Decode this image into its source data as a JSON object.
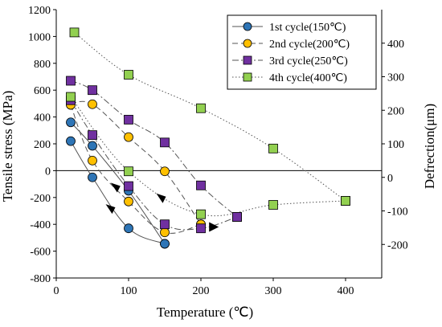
{
  "chart_data": {
    "type": "line",
    "xlabel": "Temperature (℃)",
    "ylabel": "Tensile stress (MPa)",
    "y2label": "Defrection(μm)",
    "xlim": [
      0,
      450
    ],
    "ylim": [
      -800,
      1200
    ],
    "y2lim": [
      -300,
      500
    ],
    "x_ticks": [
      "0",
      "100",
      "200",
      "300",
      "400"
    ],
    "x_tick_values": [
      0,
      100,
      200,
      300,
      400
    ],
    "y_ticks": [
      "-800",
      "-600",
      "-400",
      "-200",
      "0",
      "200",
      "400",
      "600",
      "800",
      "1000",
      "1200"
    ],
    "y_tick_values": [
      -800,
      -600,
      -400,
      -200,
      0,
      200,
      400,
      600,
      800,
      1000,
      1200
    ],
    "y2_ticks": [
      "-200",
      "-100",
      "0",
      "100",
      "200",
      "300",
      "400"
    ],
    "y2_tick_values": [
      -200,
      -100,
      0,
      100,
      200,
      300,
      400
    ],
    "legend_position": "top-right",
    "series": [
      {
        "name": "1st cycle(150℃)",
        "marker": "circle",
        "color": "#2e75b6",
        "line": "solid",
        "upper": [
          [
            20,
            360
          ],
          [
            50,
            185
          ],
          [
            100,
            -150
          ],
          [
            150,
            -545
          ]
        ],
        "lower": [
          [
            20,
            220
          ],
          [
            50,
            -50
          ],
          [
            100,
            -430
          ],
          [
            150,
            -545
          ]
        ]
      },
      {
        "name": "2nd cycle(200℃)",
        "marker": "circle",
        "color": "#ffc000",
        "line": "dashed",
        "upper": [
          [
            20,
            500
          ],
          [
            50,
            495
          ],
          [
            100,
            250
          ],
          [
            150,
            -5
          ],
          [
            200,
            -400
          ]
        ],
        "lower": [
          [
            20,
            490
          ],
          [
            50,
            75
          ],
          [
            100,
            -230
          ],
          [
            150,
            -460
          ],
          [
            200,
            -400
          ]
        ]
      },
      {
        "name": "3rd cycle(250℃)",
        "marker": "square",
        "color": "#7030a0",
        "line": "dash-dot",
        "upper": [
          [
            20,
            670
          ],
          [
            50,
            600
          ],
          [
            100,
            380
          ],
          [
            150,
            210
          ],
          [
            200,
            -110
          ],
          [
            250,
            -345
          ]
        ],
        "lower": [
          [
            20,
            525
          ],
          [
            50,
            265
          ],
          [
            100,
            -115
          ],
          [
            150,
            -400
          ],
          [
            200,
            -430
          ],
          [
            250,
            -345
          ]
        ]
      },
      {
        "name": "4th cycle(400℃)",
        "marker": "square",
        "color": "#92d050",
        "line": "dotted",
        "upper": [
          [
            25,
            1030
          ],
          [
            100,
            715
          ],
          [
            200,
            465
          ],
          [
            300,
            165
          ],
          [
            400,
            -225
          ]
        ],
        "lower": [
          [
            20,
            550
          ],
          [
            100,
            -5
          ],
          [
            200,
            -325
          ],
          [
            300,
            -255
          ],
          [
            400,
            -225
          ]
        ]
      }
    ],
    "annotations": [
      {
        "type": "arrow",
        "x": 75,
        "y": -280,
        "direction": "down"
      },
      {
        "type": "arrow",
        "x": 82,
        "y": -120,
        "direction": "down"
      },
      {
        "type": "arrow",
        "x": 145,
        "y": -200,
        "direction": "down"
      },
      {
        "type": "arrow",
        "x": 218,
        "y": -420,
        "direction": "right"
      }
    ]
  }
}
